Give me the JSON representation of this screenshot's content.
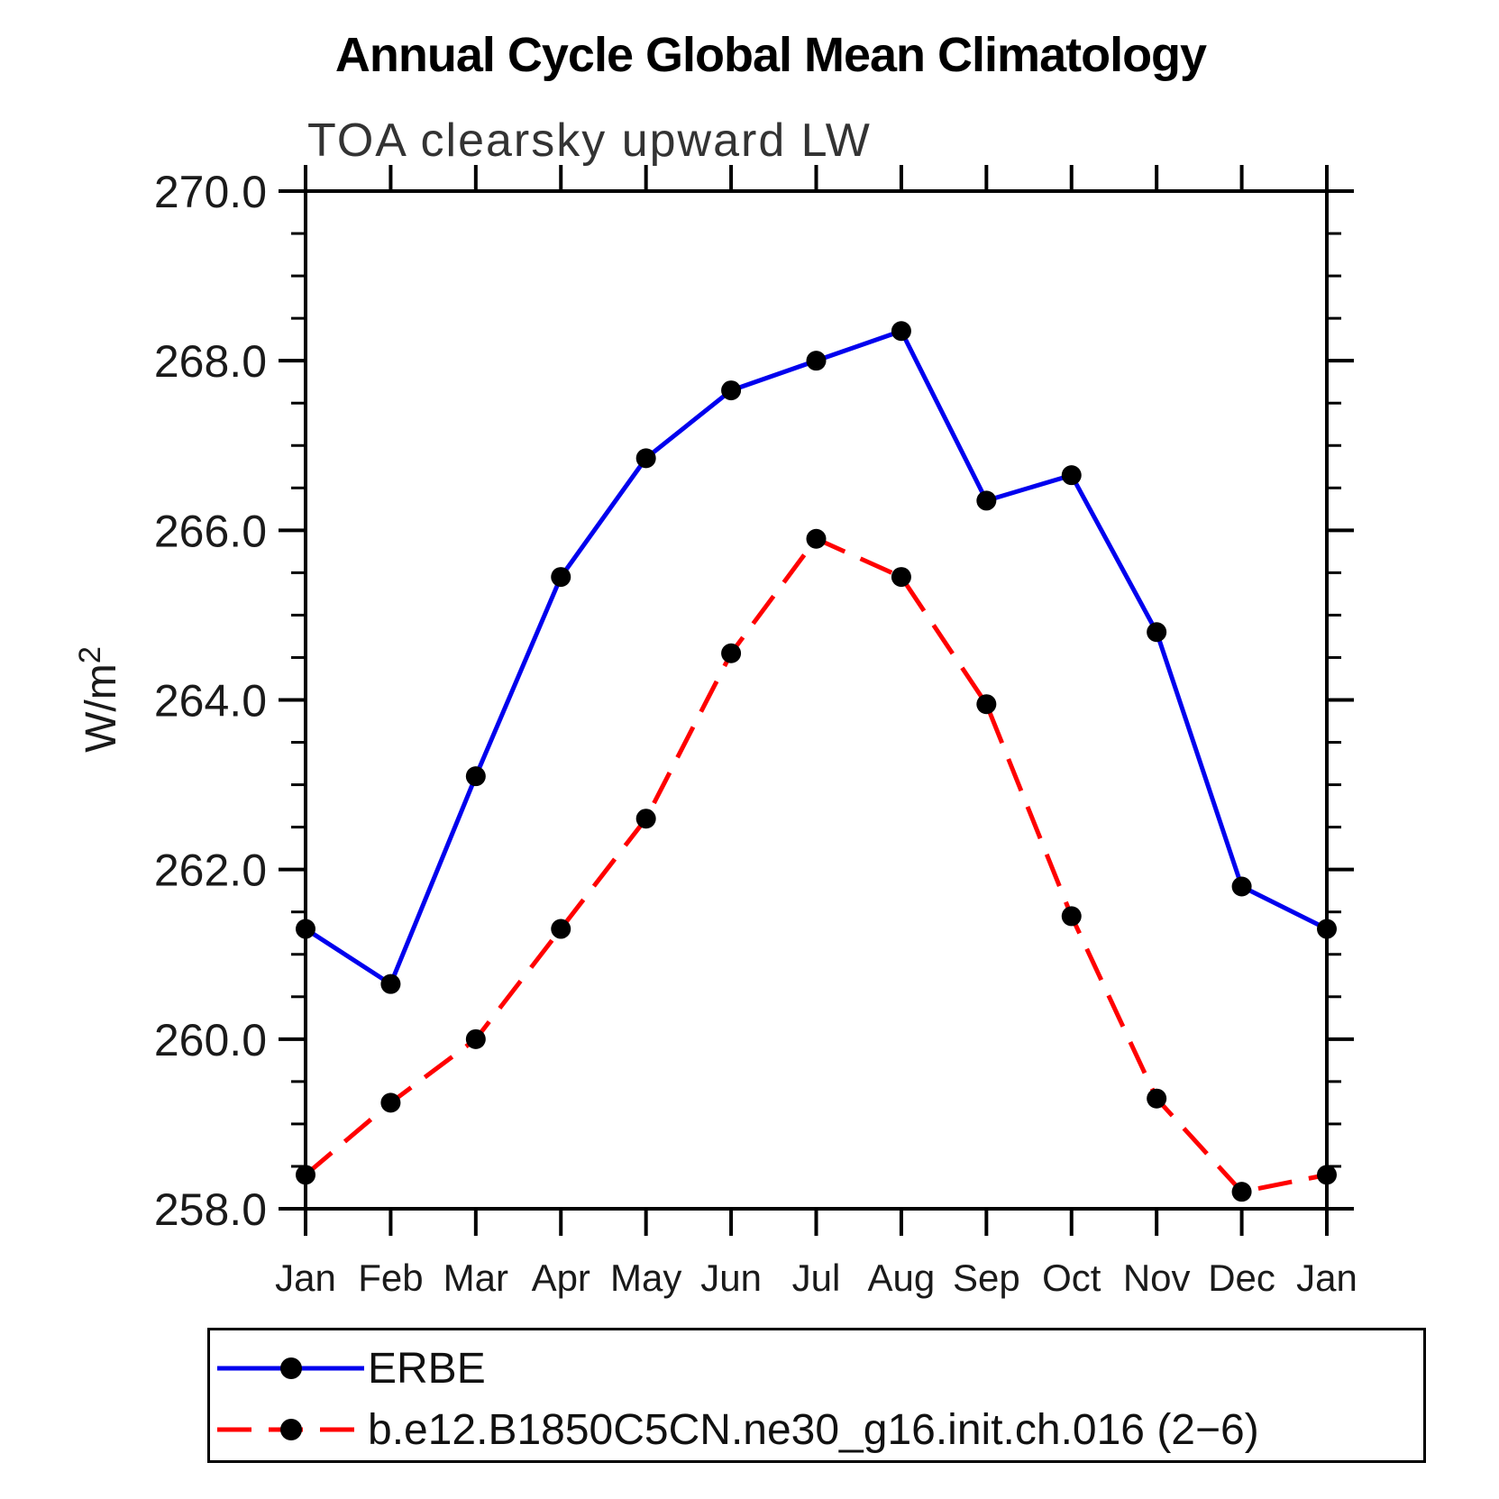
{
  "page": {
    "background": "#ffffff"
  },
  "chart_data": {
    "type": "line",
    "title": "Annual Cycle Global Mean Climatology",
    "subtitle": "TOA clearsky upward LW",
    "ylabel": "W/m",
    "ylabel_sup": "2",
    "x_categories": [
      "Jan",
      "Feb",
      "Mar",
      "Apr",
      "May",
      "Jun",
      "Jul",
      "Aug",
      "Sep",
      "Oct",
      "Nov",
      "Dec",
      "Jan"
    ],
    "ylim": [
      258.0,
      270.0
    ],
    "y_major_tick_step": 2.0,
    "y_minor_tick_step": 0.5,
    "y_tick_labels": [
      "258.0",
      "260.0",
      "262.0",
      "264.0",
      "266.0",
      "268.0",
      "270.0"
    ],
    "grid": false,
    "legend_position": "bottom",
    "axis_color": "#000000",
    "label_color": "#1a1a1a",
    "marker_color": "#000000",
    "series": [
      {
        "name": "ERBE",
        "color": "#0000ee",
        "line_style": "solid",
        "values": [
          261.3,
          260.65,
          263.1,
          265.45,
          266.85,
          267.65,
          268.0,
          268.35,
          266.35,
          266.65,
          264.8,
          261.8,
          261.3
        ]
      },
      {
        "name": "b.e12.B1850C5CN.ne30_g16.init.ch.016 (2−6)",
        "color": "#ff0000",
        "line_style": "dashed",
        "values": [
          258.4,
          259.25,
          260.0,
          261.3,
          262.6,
          264.55,
          265.9,
          265.45,
          263.95,
          261.45,
          259.3,
          258.2,
          258.4
        ]
      }
    ]
  }
}
